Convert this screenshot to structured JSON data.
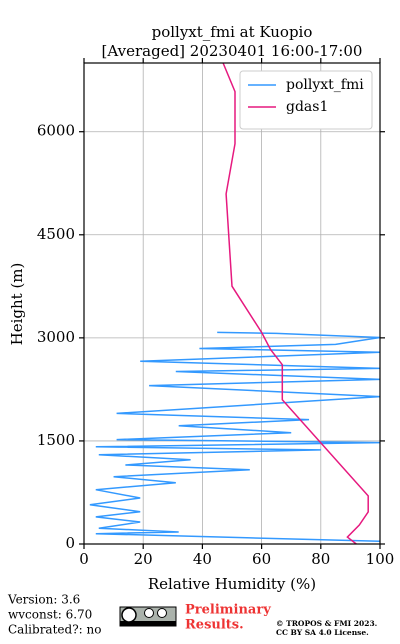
{
  "chart_data": {
    "type": "profile",
    "title": "pollyxt_fmi at Kuopio",
    "subtitle": "[Averaged] 20230401 16:00-17:00",
    "x_label": "Relative Humidity (%)",
    "y_label": "Height (m)",
    "xlim": [
      0,
      100
    ],
    "xticks": [
      0,
      20,
      40,
      60,
      80,
      100
    ],
    "ylim": [
      0,
      7000
    ],
    "yticks": [
      0,
      1500,
      3000,
      4500,
      6000
    ],
    "grid": true,
    "legend": "upper right",
    "series": [
      {
        "name": "pollyxt_fmi",
        "color": "#3399ff",
        "x": [
          100,
          55,
          4,
          32,
          5,
          19,
          4,
          19,
          2,
          19,
          4,
          31,
          10,
          56,
          14,
          36,
          5,
          80,
          4,
          100,
          11,
          70,
          32,
          76,
          11,
          100,
          22,
          100,
          31,
          100,
          19,
          100,
          39,
          85,
          100,
          65,
          45
        ],
        "y": [
          40,
          90,
          150,
          175,
          230,
          320,
          395,
          470,
          570,
          670,
          790,
          890,
          980,
          1080,
          1150,
          1225,
          1300,
          1370,
          1415,
          1475,
          1520,
          1620,
          1720,
          1810,
          1900,
          2145,
          2305,
          2395,
          2510,
          2555,
          2660,
          2790,
          2845,
          2905,
          3005,
          3065,
          3080
        ]
      },
      {
        "name": "gdas1",
        "color": "#e6197f",
        "x": [
          92,
          89,
          93,
          96,
          96,
          67,
          67,
          63,
          60,
          50,
          48,
          51,
          51,
          47
        ],
        "y": [
          0,
          100,
          277,
          467,
          700,
          2100,
          2610,
          2830,
          3080,
          3752,
          5095,
          5825,
          6584,
          7000
        ]
      }
    ]
  },
  "footer": {
    "version": "Version: 3.6",
    "wvconst": "wvconst:   6.70",
    "calibrated": "Calibrated?: no",
    "preliminary": [
      "Preliminary",
      "Results."
    ],
    "copyright": [
      "© TROPOS & FMI 2023.",
      "CC BY SA 4.0 License."
    ]
  }
}
